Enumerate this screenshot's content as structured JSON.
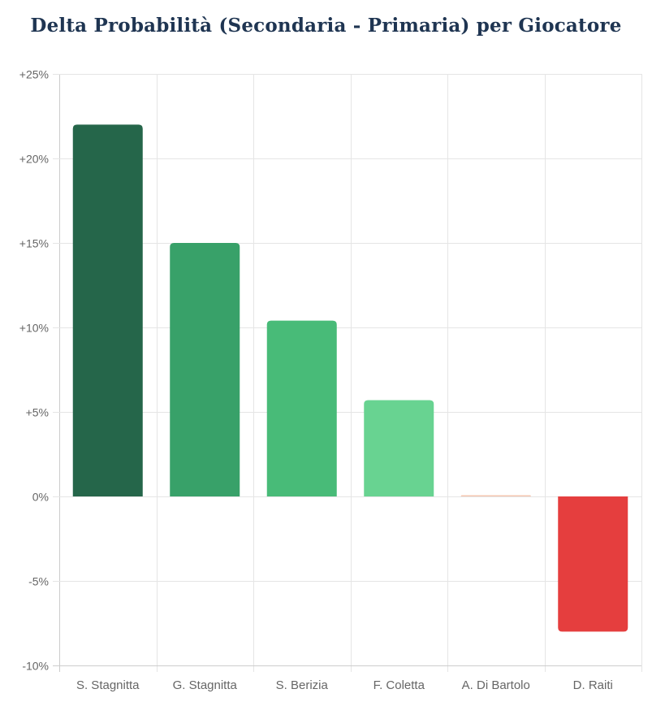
{
  "chart_data": {
    "type": "bar",
    "title": "Delta Probabilità (Secondaria - Primaria) per Giocatore",
    "categories": [
      "S. Stagnitta",
      "G. Stagnitta",
      "S. Berizia",
      "F. Coletta",
      "A. Di Bartolo",
      "D. Raiti"
    ],
    "values": [
      22.0,
      15.0,
      10.4,
      5.7,
      0.05,
      -8.0
    ],
    "colors": [
      "#25664a",
      "#38a169",
      "#48bb78",
      "#68d391",
      "#f6c7b0",
      "#e53e3e"
    ],
    "ylim": [
      -10,
      25
    ],
    "yticks": [
      25,
      20,
      15,
      10,
      5,
      0,
      -5,
      -10
    ],
    "ytick_labels": [
      "+25%",
      "+20%",
      "+15%",
      "+10%",
      "+5%",
      "0%",
      "-5%",
      "-10%"
    ],
    "grid": true,
    "xlabel": "",
    "ylabel": ""
  },
  "theme": {
    "grid_color": "#e5e5e5",
    "axis_color": "#cccccc",
    "title_color": "#1f3552"
  }
}
